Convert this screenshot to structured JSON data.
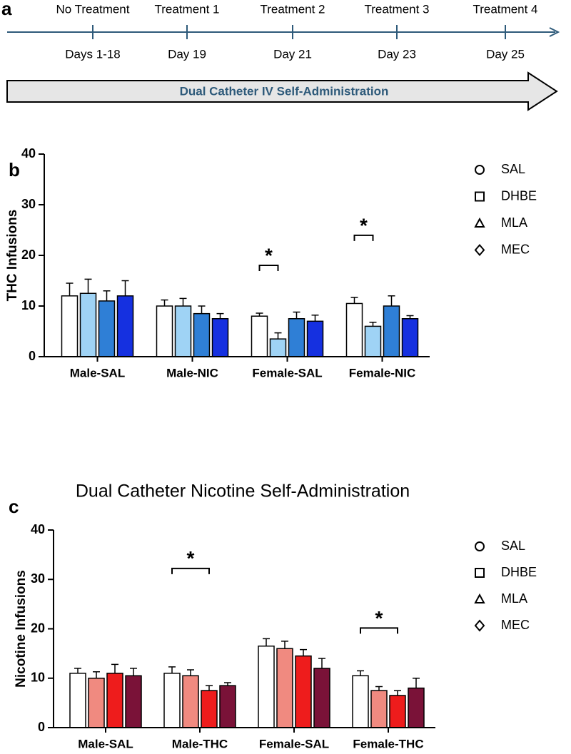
{
  "timeline": {
    "panel": "a",
    "events": [
      {
        "label": "No Treatment",
        "day": "Days 1-18"
      },
      {
        "label": "Treatment 1",
        "day": "Day 19"
      },
      {
        "label": "Treatment 2",
        "day": "Day 21"
      },
      {
        "label": "Treatment 3",
        "day": "Day 23"
      },
      {
        "label": "Treatment 4",
        "day": "Day 25"
      }
    ],
    "banner": "Dual Catheter IV Self-Administration"
  },
  "chart_data": [
    {
      "type": "bar",
      "panel": "b",
      "ylabel": "THC Infusions",
      "categories": [
        "Male-SAL",
        "Male-NIC",
        "Female-SAL",
        "Female-NIC"
      ],
      "series": [
        {
          "name": "SAL",
          "color": "#ffffff",
          "marker": "circle",
          "values": [
            12,
            10,
            8,
            10.5
          ],
          "errors": [
            2.5,
            1.2,
            0.6,
            1.2
          ]
        },
        {
          "name": "DHBE",
          "color": "#9fd3f5",
          "marker": "square",
          "values": [
            12.5,
            10,
            3.5,
            6
          ],
          "errors": [
            2.8,
            1.5,
            1.2,
            0.8
          ]
        },
        {
          "name": "MLA",
          "color": "#2f7fd6",
          "marker": "triangle",
          "values": [
            11,
            8.5,
            7.5,
            10
          ],
          "errors": [
            2,
            1.5,
            1.3,
            2
          ]
        },
        {
          "name": "MEC",
          "color": "#1530e0",
          "marker": "diamond",
          "values": [
            12,
            7.5,
            7,
            7.5
          ],
          "errors": [
            3,
            1,
            1.2,
            0.6
          ]
        }
      ],
      "ylim": [
        0,
        40
      ],
      "yticks": [
        0,
        10,
        20,
        30,
        40
      ],
      "legend": "right",
      "annotations": [
        {
          "text": "*",
          "category": 2,
          "from": 0,
          "to": 1
        },
        {
          "text": "*",
          "category": 3,
          "from": 0,
          "to": 1
        }
      ]
    },
    {
      "type": "bar",
      "panel": "c",
      "title": "Dual Catheter Nicotine Self-Administration",
      "ylabel": "Nicotine Infusions",
      "categories": [
        "Male-SAL",
        "Male-THC",
        "Female-SAL",
        "Female-THC"
      ],
      "series": [
        {
          "name": "SAL",
          "color": "#ffffff",
          "marker": "circle",
          "values": [
            11,
            11,
            16.5,
            10.5
          ],
          "errors": [
            1,
            1.3,
            1.5,
            1
          ]
        },
        {
          "name": "DHBE",
          "color": "#f08a80",
          "marker": "square",
          "values": [
            10,
            10.5,
            16,
            7.5
          ],
          "errors": [
            1.3,
            1.2,
            1.5,
            0.8
          ]
        },
        {
          "name": "MLA",
          "color": "#ee1c1c",
          "marker": "triangle",
          "values": [
            11,
            7.5,
            14.5,
            6.5
          ],
          "errors": [
            1.8,
            1,
            1.3,
            1
          ]
        },
        {
          "name": "MEC",
          "color": "#7a1238",
          "marker": "diamond",
          "values": [
            10.5,
            8.5,
            12,
            8
          ],
          "errors": [
            1.5,
            0.6,
            2,
            2
          ]
        }
      ],
      "ylim": [
        0,
        40
      ],
      "yticks": [
        0,
        10,
        20,
        30,
        40
      ],
      "legend": "right",
      "annotations": [
        {
          "text": "*",
          "category": 1,
          "from": 0,
          "to": 2
        },
        {
          "text": "*",
          "category": 3,
          "from": 0,
          "to": 2
        }
      ]
    }
  ]
}
